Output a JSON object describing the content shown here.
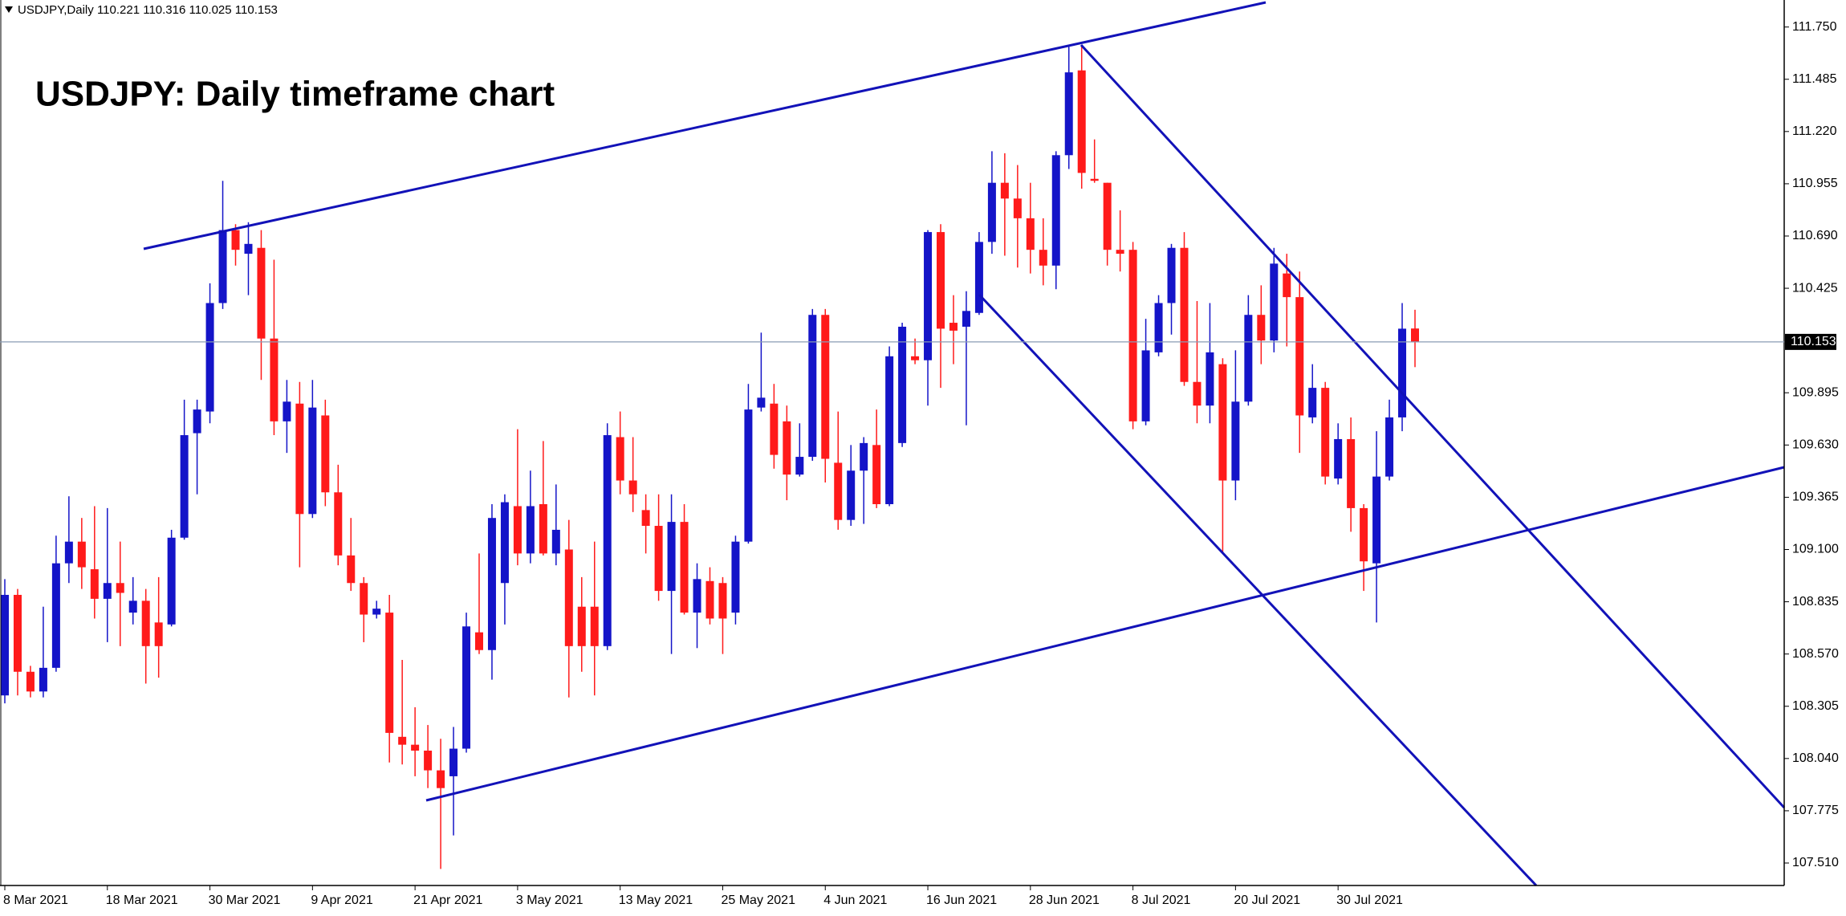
{
  "chart_data": {
    "type": "candlestick",
    "title": "USDJPY: Daily timeframe chart",
    "symbol": "USDJPY,Daily",
    "up_color": "#1414c8",
    "down_color": "#ff1a1a",
    "grid": false,
    "ylim": [
      107.396,
      111.887
    ],
    "yticks": [
      {
        "value": 107.51,
        "label": "107.510"
      },
      107.775,
      {
        "value": 108.04,
        "label": "108.040"
      },
      108.305,
      {
        "value": 108.57,
        "label": "108.570"
      },
      108.835,
      {
        "value": 109.1,
        "label": "109.100"
      },
      109.365,
      {
        "value": 109.63,
        "label": "109.630"
      },
      109.895,
      110.425,
      {
        "value": 110.69,
        "label": "110.690"
      },
      110.955,
      {
        "value": 111.22,
        "label": "111.220"
      },
      111.485,
      {
        "value": 111.75,
        "label": "111.750"
      }
    ],
    "categories": [
      "8 Mar 2021",
      null,
      null,
      null,
      null,
      null,
      null,
      null,
      "18 Mar 2021",
      null,
      null,
      null,
      null,
      null,
      null,
      null,
      "30 Mar 2021",
      null,
      null,
      null,
      null,
      null,
      null,
      null,
      "9 Apr 2021",
      null,
      null,
      null,
      null,
      null,
      null,
      null,
      "21 Apr 2021",
      null,
      null,
      null,
      null,
      null,
      null,
      null,
      "3 May 2021",
      null,
      null,
      null,
      null,
      null,
      null,
      null,
      "13 May 2021",
      null,
      null,
      null,
      null,
      null,
      null,
      null,
      "25 May 2021",
      null,
      null,
      null,
      null,
      null,
      null,
      null,
      "4 Jun 2021",
      null,
      null,
      null,
      null,
      null,
      null,
      null,
      "16 Jun 2021",
      null,
      null,
      null,
      null,
      null,
      null,
      null,
      "28 Jun 2021",
      null,
      null,
      null,
      null,
      null,
      null,
      null,
      "8 Jul 2021",
      null,
      null,
      null,
      null,
      null,
      null,
      null,
      "20 Jul 2021",
      null,
      null,
      null,
      null,
      null,
      null,
      null,
      "30 Jul 2021",
      null,
      null,
      null,
      null,
      null,
      null
    ],
    "open": [
      108.36,
      108.87,
      108.48,
      108.38,
      108.5,
      109.03,
      109.14,
      109.0,
      108.85,
      108.93,
      108.78,
      108.84,
      108.73,
      108.72,
      109.16,
      109.69,
      109.8,
      110.35,
      110.72,
      110.6,
      110.63,
      110.17,
      109.75,
      109.84,
      109.28,
      109.78,
      109.39,
      109.07,
      108.93,
      108.77,
      108.78,
      108.15,
      108.11,
      108.08,
      107.98,
      107.95,
      108.09,
      108.68,
      108.59,
      108.93,
      109.32,
      109.08,
      109.33,
      109.08,
      109.1,
      108.81,
      108.81,
      108.61,
      109.67,
      109.45,
      109.3,
      109.22,
      108.89,
      109.24,
      108.78,
      108.94,
      108.93,
      108.78,
      109.14,
      109.82,
      109.84,
      109.75,
      109.48,
      109.57,
      110.29,
      109.54,
      109.25,
      109.5,
      109.63,
      109.33,
      109.64,
      110.08,
      110.06,
      110.71,
      110.25,
      110.23,
      110.3,
      110.66,
      110.96,
      110.88,
      110.78,
      110.62,
      110.54,
      111.1,
      111.53,
      110.98,
      110.96,
      110.62,
      110.62,
      109.75,
      110.1,
      110.35,
      110.63,
      109.95,
      109.83,
      110.04,
      109.45,
      109.85,
      110.29,
      110.16,
      110.5,
      110.38,
      109.77,
      109.92,
      109.46,
      109.66,
      109.31,
      109.03,
      109.47,
      109.77,
      110.221
    ],
    "high": [
      108.95,
      108.9,
      108.51,
      108.81,
      109.17,
      109.37,
      109.26,
      109.32,
      109.31,
      109.14,
      108.96,
      108.9,
      108.96,
      109.2,
      109.86,
      109.86,
      110.45,
      110.97,
      110.75,
      110.76,
      110.72,
      110.57,
      109.96,
      109.95,
      109.96,
      109.86,
      109.53,
      109.26,
      108.96,
      108.84,
      108.87,
      108.54,
      108.3,
      108.21,
      108.14,
      108.2,
      108.78,
      109.08,
      109.33,
      109.38,
      109.71,
      109.5,
      109.65,
      109.43,
      109.25,
      108.96,
      109.14,
      109.74,
      109.8,
      109.67,
      109.38,
      109.38,
      109.38,
      109.33,
      109.03,
      109.01,
      108.96,
      109.17,
      109.94,
      110.2,
      109.94,
      109.83,
      109.74,
      110.32,
      110.32,
      109.8,
      109.63,
      109.67,
      109.81,
      110.13,
      110.25,
      110.17,
      110.72,
      110.75,
      110.39,
      110.41,
      110.71,
      111.12,
      111.11,
      111.05,
      110.96,
      110.78,
      111.12,
      111.65,
      111.66,
      111.18,
      110.96,
      110.82,
      110.66,
      110.27,
      110.39,
      110.65,
      110.71,
      110.36,
      110.35,
      110.07,
      110.11,
      110.39,
      110.44,
      110.63,
      110.6,
      110.51,
      110.04,
      109.95,
      109.74,
      109.77,
      109.33,
      109.7,
      109.86,
      110.35,
      110.316
    ],
    "low": [
      108.32,
      108.36,
      108.35,
      108.35,
      108.48,
      108.93,
      108.9,
      108.75,
      108.63,
      108.61,
      108.72,
      108.42,
      108.45,
      108.71,
      109.15,
      109.38,
      109.74,
      110.32,
      110.54,
      110.39,
      109.96,
      109.68,
      109.59,
      109.01,
      109.26,
      109.32,
      109.02,
      108.89,
      108.63,
      108.75,
      108.02,
      108.01,
      107.95,
      107.89,
      107.48,
      107.65,
      108.07,
      108.57,
      108.44,
      108.72,
      109.02,
      109.03,
      109.07,
      109.02,
      108.35,
      108.48,
      108.36,
      108.59,
      109.38,
      109.29,
      109.08,
      108.84,
      108.57,
      108.77,
      108.6,
      108.72,
      108.57,
      108.72,
      109.13,
      109.8,
      109.51,
      109.35,
      109.47,
      109.55,
      109.44,
      109.2,
      109.22,
      109.23,
      109.31,
      109.32,
      109.62,
      110.04,
      109.83,
      109.92,
      110.04,
      109.73,
      110.29,
      110.6,
      110.59,
      110.53,
      110.5,
      110.44,
      110.42,
      111.03,
      110.93,
      110.96,
      110.54,
      110.51,
      109.71,
      109.73,
      110.08,
      110.19,
      109.93,
      109.74,
      109.74,
      109.08,
      109.35,
      109.83,
      110.04,
      110.1,
      110.13,
      109.59,
      109.74,
      109.43,
      109.43,
      109.19,
      108.89,
      108.73,
      109.45,
      109.7,
      110.025
    ],
    "close": [
      108.87,
      108.48,
      108.38,
      108.5,
      109.03,
      109.14,
      109.01,
      108.85,
      108.93,
      108.88,
      108.84,
      108.61,
      108.61,
      109.16,
      109.68,
      109.81,
      110.35,
      110.72,
      110.62,
      110.65,
      110.17,
      109.75,
      109.85,
      109.28,
      109.82,
      109.39,
      109.07,
      108.93,
      108.77,
      108.8,
      108.17,
      108.11,
      108.08,
      107.98,
      107.89,
      108.09,
      108.71,
      108.59,
      109.26,
      109.34,
      109.08,
      109.32,
      109.08,
      109.2,
      108.61,
      108.61,
      108.61,
      109.68,
      109.45,
      109.38,
      109.22,
      108.89,
      109.24,
      108.78,
      108.95,
      108.75,
      108.75,
      109.14,
      109.81,
      109.87,
      109.58,
      109.48,
      109.57,
      110.29,
      109.56,
      109.25,
      109.5,
      109.64,
      109.33,
      110.08,
      110.23,
      110.06,
      110.71,
      110.22,
      110.21,
      110.31,
      110.66,
      110.96,
      110.88,
      110.78,
      110.62,
      110.54,
      111.1,
      111.52,
      111.01,
      110.97,
      110.62,
      110.6,
      109.75,
      110.11,
      110.35,
      110.63,
      109.95,
      109.83,
      110.1,
      109.45,
      109.85,
      110.29,
      110.16,
      110.55,
      110.38,
      109.78,
      109.92,
      109.47,
      109.66,
      109.31,
      109.04,
      109.47,
      109.77,
      110.22,
      110.153
    ]
  }
}
